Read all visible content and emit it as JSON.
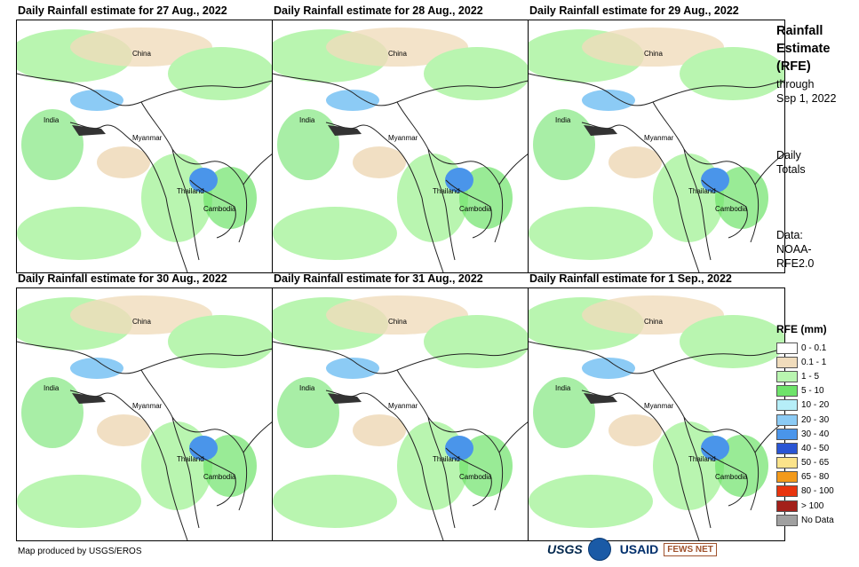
{
  "panels": [
    {
      "title": "Daily Rainfall estimate for 27 Aug., 2022"
    },
    {
      "title": "Daily Rainfall estimate for 28 Aug., 2022"
    },
    {
      "title": "Daily Rainfall estimate for 29 Aug., 2022"
    },
    {
      "title": "Daily Rainfall estimate for 30 Aug., 2022"
    },
    {
      "title": "Daily Rainfall estimate for 31 Aug., 2022"
    },
    {
      "title": "Daily Rainfall estimate for 1  Sep., 2022"
    }
  ],
  "map_labels": {
    "china": "China",
    "india": "India",
    "myanmar": "Myanmar",
    "thailand": "Thailand",
    "cambodia": "Cambodia"
  },
  "sidebar": {
    "title_line1": "Rainfall",
    "title_line2": "Estimate",
    "title_line3": "(RFE)",
    "through": "through",
    "through_date": "Sep 1, 2022",
    "daily": "Daily",
    "totals": "Totals",
    "data_label": "Data:",
    "data_source1": "NOAA-",
    "data_source2": "RFE2.0"
  },
  "legend": {
    "title": "RFE (mm)",
    "items": [
      {
        "label": "0 - 0.1",
        "color": "#ffffff"
      },
      {
        "label": "0.1 - 1",
        "color": "#f0dcbc"
      },
      {
        "label": "1 - 5",
        "color": "#b9f5b0"
      },
      {
        "label": "5 - 10",
        "color": "#6ee36a"
      },
      {
        "label": "10 - 20",
        "color": "#b6eef8"
      },
      {
        "label": "20 - 30",
        "color": "#8ccbf5"
      },
      {
        "label": "30 - 40",
        "color": "#4a95ea"
      },
      {
        "label": "40 - 50",
        "color": "#2a55d4"
      },
      {
        "label": "50 - 65",
        "color": "#fbe38a"
      },
      {
        "label": "65 - 80",
        "color": "#f39a1a"
      },
      {
        "label": "80 - 100",
        "color": "#e8340e"
      },
      {
        "label": "> 100",
        "color": "#a3201a"
      },
      {
        "label": "No Data",
        "color": "#a0a0a0"
      }
    ]
  },
  "footer": {
    "credit": "Map produced by USGS/EROS",
    "logo_usgs": "USGS",
    "logo_usaid": "USAID",
    "logo_fews": "FEWS NET"
  }
}
